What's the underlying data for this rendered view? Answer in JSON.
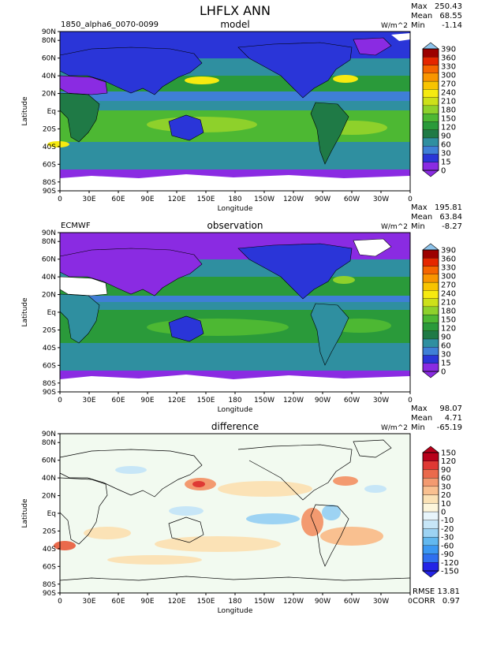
{
  "page_title": "LHFLX ANN",
  "case_name": "1850_alpha6_0070-0099",
  "axis": {
    "xlabel": "Longitude",
    "ylabel": "Latitude",
    "lon_ticks": [
      "0",
      "30E",
      "60E",
      "90E",
      "120E",
      "150E",
      "180",
      "150W",
      "120W",
      "90W",
      "60W",
      "30W",
      "0"
    ],
    "lat_ticks": [
      "90N",
      "80N",
      "60N",
      "40N",
      "20N",
      "Eq",
      "20S",
      "40S",
      "60S",
      "80S",
      "90S"
    ],
    "lat_values": [
      90,
      80,
      60,
      40,
      20,
      0,
      -20,
      -40,
      -60,
      -80,
      -90
    ]
  },
  "panels": [
    {
      "id": "model",
      "title": "model",
      "left_label": "1850_alpha6_0070-0099",
      "units": "W/m^2",
      "stats": {
        "max_label": "Max",
        "max": "250.43",
        "mean_label": "Mean",
        "mean": "68.55",
        "min_label": "Min",
        "min": "-1.14"
      },
      "colorbar": [
        "0",
        "15",
        "30",
        "60",
        "90",
        "120",
        "150",
        "180",
        "210",
        "240",
        "270",
        "300",
        "330",
        "360",
        "390"
      ]
    },
    {
      "id": "observation",
      "title": "observation",
      "left_label": "ECMWF",
      "units": "W/m^2",
      "stats": {
        "max_label": "Max",
        "max": "195.81",
        "mean_label": "Mean",
        "mean": "63.84",
        "min_label": "Min",
        "min": "-8.27"
      },
      "colorbar": [
        "0",
        "15",
        "30",
        "60",
        "90",
        "120",
        "150",
        "180",
        "210",
        "240",
        "270",
        "300",
        "330",
        "360",
        "390"
      ]
    },
    {
      "id": "difference",
      "title": "difference",
      "left_label": "",
      "units": "W/m^2",
      "stats": {
        "max_label": "Max",
        "max": "98.07",
        "mean_label": "Mean",
        "mean": "4.71",
        "min_label": "Min",
        "min": "-65.19"
      },
      "colorbar": [
        "-150",
        "-120",
        "-90",
        "-60",
        "-30",
        "-20",
        "-10",
        "0",
        "10",
        "20",
        "30",
        "60",
        "90",
        "120",
        "150"
      ],
      "rmse_label": "RMSE",
      "rmse": "13.81",
      "corr_label": "CORR",
      "corr": "0.97"
    }
  ],
  "chart_data": [
    {
      "type": "heatmap",
      "title": "model",
      "xlabel": "Longitude",
      "ylabel": "Latitude",
      "xlim": [
        0,
        360
      ],
      "ylim": [
        -90,
        90
      ],
      "units": "W/m^2",
      "levels": [
        0,
        15,
        30,
        60,
        90,
        120,
        150,
        180,
        210,
        240,
        270,
        300,
        330,
        360,
        390
      ],
      "max": 250.43,
      "mean": 68.55,
      "min": -1.14
    },
    {
      "type": "heatmap",
      "title": "observation",
      "xlabel": "Longitude",
      "ylabel": "Latitude",
      "xlim": [
        0,
        360
      ],
      "ylim": [
        -90,
        90
      ],
      "units": "W/m^2",
      "levels": [
        0,
        15,
        30,
        60,
        90,
        120,
        150,
        180,
        210,
        240,
        270,
        300,
        330,
        360,
        390
      ],
      "max": 195.81,
      "mean": 63.84,
      "min": -8.27
    },
    {
      "type": "heatmap",
      "title": "difference",
      "xlabel": "Longitude",
      "ylabel": "Latitude",
      "xlim": [
        0,
        360
      ],
      "ylim": [
        -90,
        90
      ],
      "units": "W/m^2",
      "levels": [
        -150,
        -120,
        -90,
        -60,
        -30,
        -20,
        -10,
        0,
        10,
        20,
        30,
        60,
        90,
        120,
        150
      ],
      "max": 98.07,
      "mean": 4.71,
      "min": -65.19,
      "rmse": 13.81,
      "corr": 0.97
    }
  ],
  "colors": {
    "abs_palette": [
      "#8a2be2",
      "#2a35d8",
      "#3f7fd6",
      "#2f8fa0",
      "#1f7a46",
      "#2a9a3a",
      "#4db833",
      "#8ed12b",
      "#cde019",
      "#f6ea10",
      "#f8c400",
      "#f99600",
      "#f56500",
      "#e52600",
      "#9c0000"
    ],
    "abs_under": "#ffffff",
    "abs_over": "#9c0000",
    "diff_palette": [
      "#2323e6",
      "#2f6ff0",
      "#3b98f2",
      "#62b8ef",
      "#9dd3f3",
      "#c7e6f7",
      "#e8f5fb",
      "#fdf6dc",
      "#fbe2b6",
      "#f9c090",
      "#f39a70",
      "#ea6a4c",
      "#df3934",
      "#b8001a"
    ]
  }
}
